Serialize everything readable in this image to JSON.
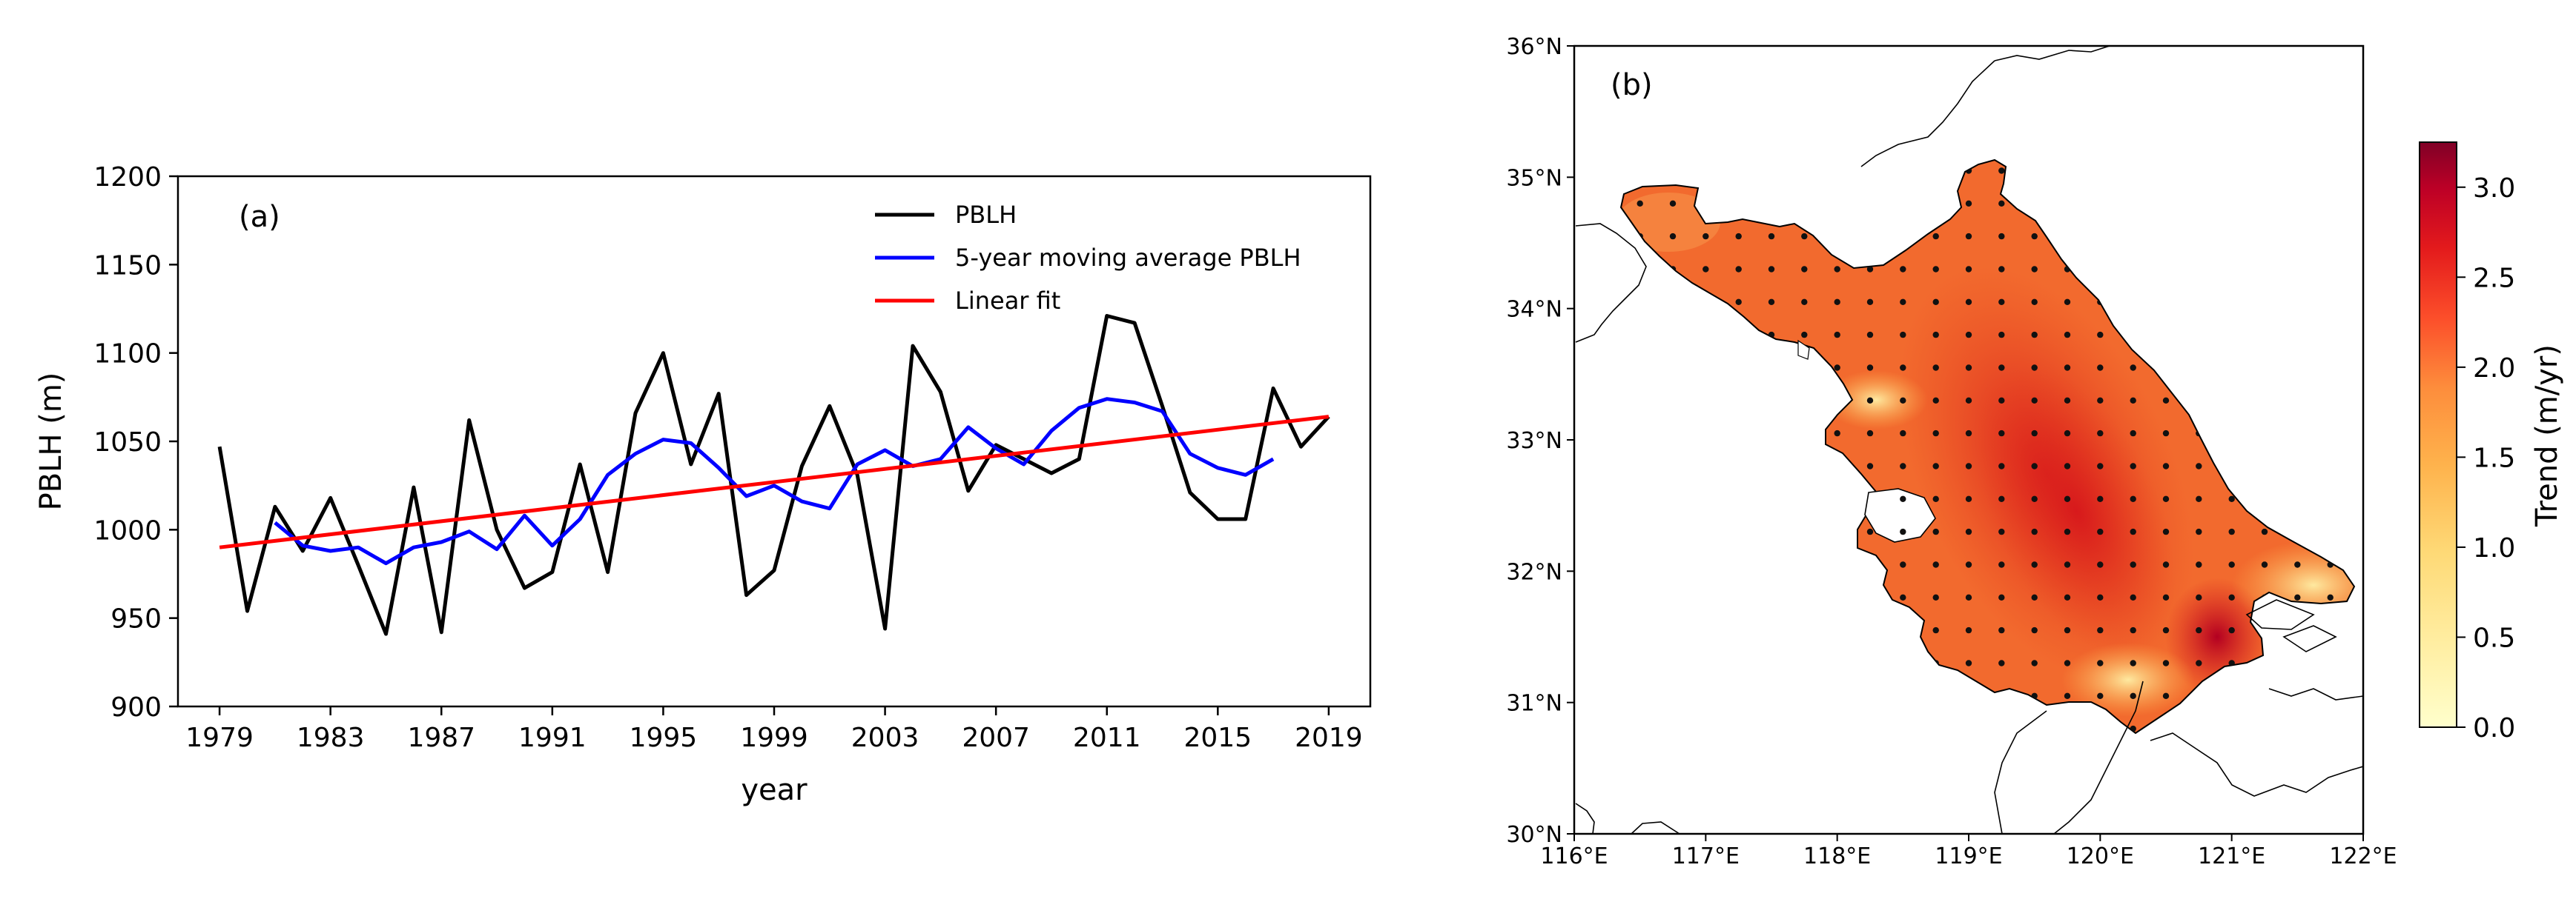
{
  "chart_data": [
    {
      "type": "line",
      "panel_label": "(a)",
      "xlabel": "year",
      "ylabel": "PBLH (m)",
      "xlim": [
        1977.5,
        2020.5
      ],
      "ylim": [
        900,
        1200
      ],
      "xticks": [
        "1979",
        "1983",
        "1987",
        "1991",
        "1995",
        "1999",
        "2003",
        "2007",
        "2011",
        "2015",
        "2019"
      ],
      "yticks": [
        "900",
        "950",
        "1000",
        "1050",
        "1100",
        "1150",
        "1200"
      ],
      "legend_position": "upper-right",
      "grid": false,
      "series": [
        {
          "name": "PBLH",
          "color": "#000000",
          "x": [
            1979,
            1980,
            1981,
            1982,
            1983,
            1984,
            1985,
            1986,
            1987,
            1988,
            1989,
            1990,
            1991,
            1992,
            1993,
            1994,
            1995,
            1996,
            1997,
            1998,
            1999,
            2000,
            2001,
            2002,
            2003,
            2004,
            2005,
            2006,
            2007,
            2008,
            2009,
            2010,
            2011,
            2012,
            2013,
            2014,
            2015,
            2016,
            2017,
            2018,
            2019
          ],
          "values": [
            1047,
            954,
            1013,
            988,
            1018,
            980,
            941,
            1024,
            942,
            1062,
            1000,
            967,
            976,
            1037,
            976,
            1066,
            1100,
            1037,
            1077,
            963,
            977,
            1036,
            1070,
            1031,
            944,
            1104,
            1078,
            1022,
            1048,
            1040,
            1032,
            1040,
            1121,
            1117,
            1070,
            1021,
            1006,
            1006,
            1080,
            1047,
            1064
          ]
        },
        {
          "name": "5-year moving average PBLH",
          "color": "#0000ff",
          "x": [
            1981,
            1982,
            1983,
            1984,
            1985,
            1986,
            1987,
            1988,
            1989,
            1990,
            1991,
            1992,
            1993,
            1994,
            1995,
            1996,
            1997,
            1998,
            1999,
            2000,
            2001,
            2002,
            2003,
            2004,
            2005,
            2006,
            2007,
            2008,
            2009,
            2010,
            2011,
            2012,
            2013,
            2014,
            2015,
            2016,
            2017
          ],
          "values": [
            1004,
            991,
            988,
            990,
            981,
            990,
            993,
            999,
            989,
            1008,
            991,
            1006,
            1031,
            1043,
            1051,
            1049,
            1035,
            1019,
            1025,
            1016,
            1012,
            1037,
            1045,
            1036,
            1040,
            1058,
            1046,
            1037,
            1056,
            1069,
            1074,
            1072,
            1067,
            1043,
            1035,
            1031,
            1040
          ]
        },
        {
          "name": "Linear fit",
          "color": "#ff0000",
          "x": [
            1979,
            2019
          ],
          "values": [
            990,
            1064
          ]
        }
      ]
    },
    {
      "type": "map",
      "panel_label": "(b)",
      "colorbar_label": "Trend (m/yr)",
      "colorbar_ticks": [
        "0.0",
        "0.5",
        "1.0",
        "1.5",
        "2.0",
        "2.5",
        "3.0"
      ],
      "colorbar_range": [
        0,
        3.25
      ],
      "colorbar_colors": [
        "#ffffcc",
        "#ffeda0",
        "#fed976",
        "#feb24c",
        "#fd8d3c",
        "#fc4e2a",
        "#e31a1c",
        "#bd0026",
        "#800026"
      ],
      "lon_ticks": [
        "116°E",
        "117°E",
        "118°E",
        "119°E",
        "120°E",
        "121°E",
        "122°E"
      ],
      "lat_ticks": [
        "30°N",
        "31°N",
        "32°N",
        "33°N",
        "34°N",
        "35°N",
        "36°N"
      ],
      "lon_range": [
        116,
        122
      ],
      "lat_range": [
        30,
        36
      ]
    }
  ]
}
